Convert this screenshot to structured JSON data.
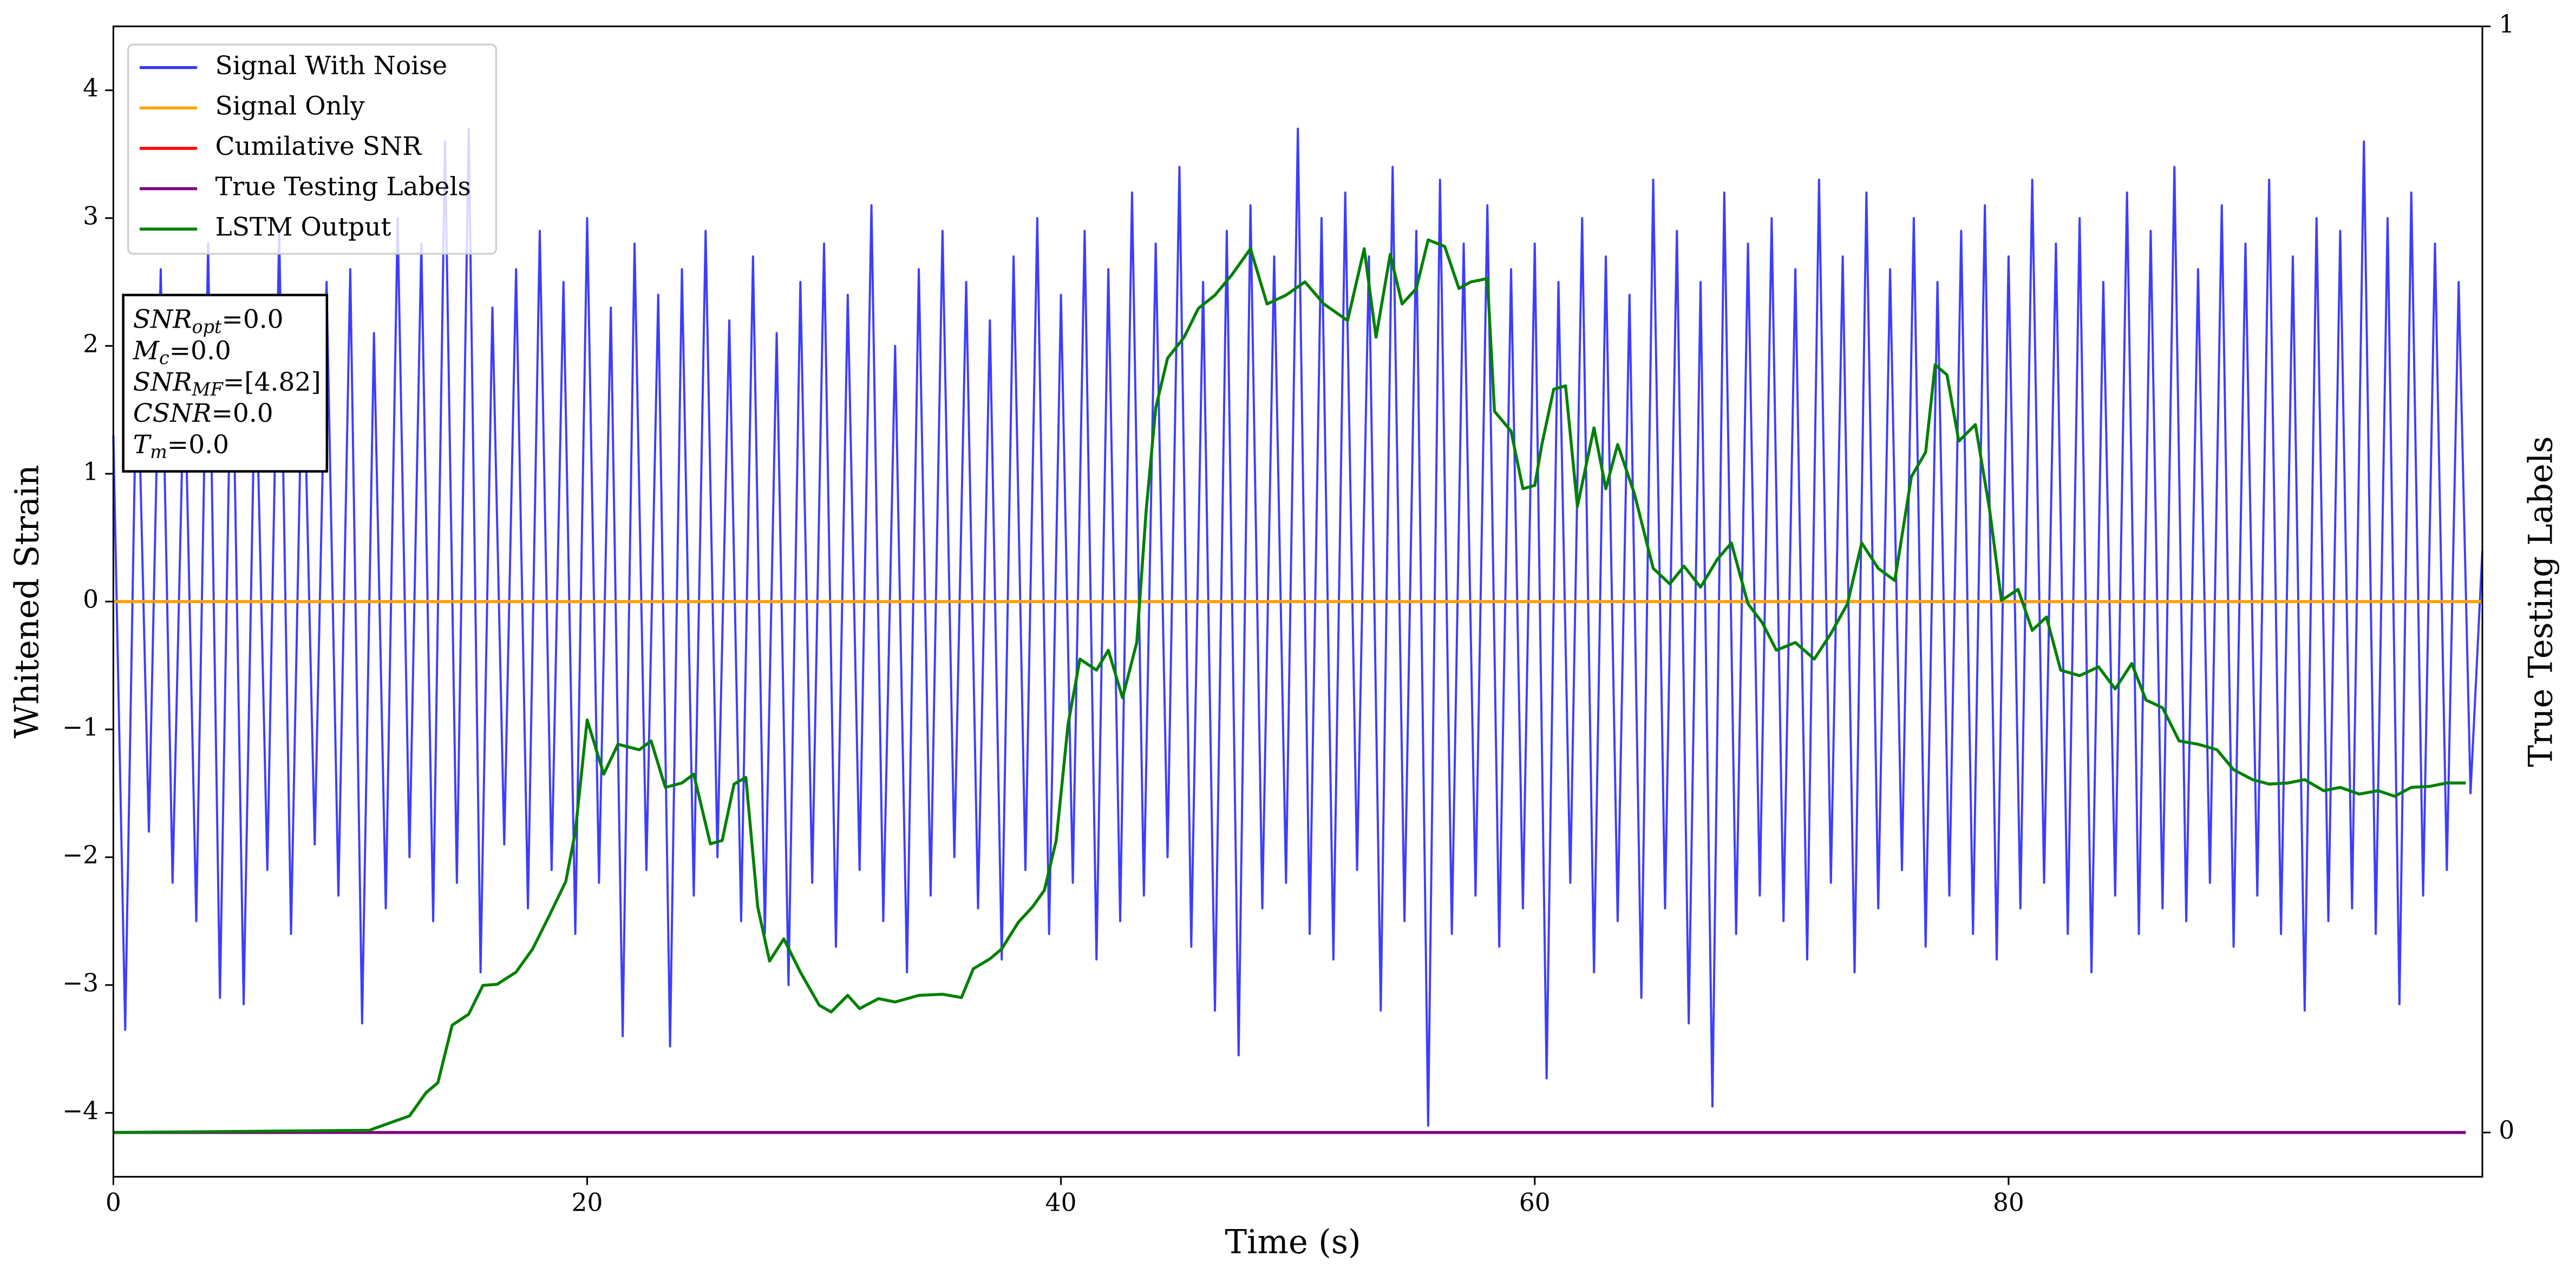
{
  "chart_data": {
    "type": "line",
    "xlabel": "Time (s)",
    "ylabel": "Whitened Strain",
    "y2label": "True Testing Labels",
    "xlim": [
      0,
      100
    ],
    "xticks": [
      0,
      20,
      40,
      60,
      80
    ],
    "ylim": [
      -4.5,
      4.5
    ],
    "yticks": [
      {
        "value": -4,
        "label": "−4"
      },
      {
        "value": -3,
        "label": "−3"
      },
      {
        "value": -2,
        "label": "−2"
      },
      {
        "value": -1,
        "label": "−1"
      },
      0,
      1,
      2,
      3,
      4
    ],
    "y2lim": [
      -0.04,
      1.0
    ],
    "y2ticks": [
      0,
      1
    ],
    "legend": "upper left",
    "annotations": [
      {
        "text": "SNR",
        "sub": "opt",
        "rest": "=0.0"
      },
      {
        "text": "M",
        "sub": "c",
        "rest": "=0.0"
      },
      {
        "text": "SNR",
        "sub": "MF",
        "rest": "=[4.82]"
      },
      {
        "text": "CSNR",
        "rest": "=0.0"
      },
      {
        "text": "T",
        "sub": "m",
        "rest": "=0.0"
      }
    ],
    "series": [
      {
        "name": "Signal With Noise",
        "color": "#3333ff",
        "axis": "y",
        "x": [
          0,
          0.5,
          1,
          1.5,
          2,
          2.5,
          3,
          3.5,
          4,
          4.5,
          5,
          5.5,
          6,
          6.5,
          7,
          7.5,
          8,
          8.5,
          9,
          9.5,
          10,
          10.5,
          11,
          11.5,
          12,
          12.5,
          13,
          13.5,
          14,
          14.5,
          15,
          15.5,
          16,
          16.5,
          17,
          17.5,
          18,
          18.5,
          19,
          19.5,
          20,
          20.5,
          21,
          21.5,
          22,
          22.5,
          23,
          23.5,
          24,
          24.5,
          25,
          25.5,
          26,
          26.5,
          27,
          27.5,
          28,
          28.5,
          29,
          29.5,
          30,
          30.5,
          31,
          31.5,
          32,
          32.5,
          33,
          33.5,
          34,
          34.5,
          35,
          35.5,
          36,
          36.5,
          37,
          37.5,
          38,
          38.5,
          39,
          39.5,
          40,
          40.5,
          41,
          41.5,
          42,
          42.5,
          43,
          43.5,
          44,
          44.5,
          45,
          45.5,
          46,
          46.5,
          47,
          47.5,
          48,
          48.5,
          49,
          49.5,
          50,
          50.5,
          51,
          51.5,
          52,
          52.5,
          53,
          53.5,
          54,
          54.5,
          55,
          55.5,
          56,
          56.5,
          57,
          57.5,
          58,
          58.5,
          59,
          59.5,
          60,
          60.5,
          61,
          61.5,
          62,
          62.5,
          63,
          63.5,
          64,
          64.5,
          65,
          65.5,
          66,
          66.5,
          67,
          67.5,
          68,
          68.5,
          69,
          69.5,
          70,
          70.5,
          71,
          71.5,
          72,
          72.5,
          73,
          73.5,
          74,
          74.5,
          75,
          75.5,
          76,
          76.5,
          77,
          77.5,
          78,
          78.5,
          79,
          79.5,
          80,
          80.5,
          81,
          81.5,
          82,
          82.5,
          83,
          83.5,
          84,
          84.5,
          85,
          85.5,
          86,
          86.5,
          87,
          87.5,
          88,
          88.5,
          89,
          89.5,
          90,
          90.5,
          91,
          91.5,
          92,
          92.5,
          93,
          93.5,
          94,
          94.5,
          95,
          95.5,
          96,
          96.5,
          97,
          97.5,
          98,
          98.5,
          99,
          99.5,
          100
        ],
        "values": [
          1.3,
          -3.35,
          2.1,
          -1.8,
          2.6,
          -2.2,
          1.9,
          -2.5,
          2.8,
          -3.1,
          2.4,
          -3.15,
          2.0,
          -2.1,
          2.9,
          -2.6,
          2.2,
          -1.9,
          2.5,
          -2.3,
          2.6,
          -3.3,
          2.1,
          -2.4,
          3.0,
          -2.0,
          2.8,
          -2.5,
          3.6,
          -2.2,
          3.7,
          -2.9,
          2.3,
          -1.9,
          2.6,
          -2.4,
          2.9,
          -2.1,
          2.5,
          -2.6,
          3.0,
          -2.2,
          2.3,
          -3.4,
          2.8,
          -2.1,
          2.4,
          -3.48,
          2.6,
          -2.3,
          2.9,
          -2.0,
          2.2,
          -2.5,
          2.7,
          -2.6,
          2.1,
          -3.0,
          2.5,
          -2.2,
          2.8,
          -2.7,
          2.4,
          -2.1,
          3.1,
          -2.5,
          2.0,
          -2.9,
          2.6,
          -2.3,
          2.9,
          -2.0,
          2.5,
          -2.4,
          2.2,
          -2.8,
          2.7,
          -2.1,
          3.0,
          -2.6,
          2.4,
          -2.2,
          2.9,
          -2.8,
          2.6,
          -2.5,
          3.2,
          -2.3,
          2.8,
          -2.0,
          3.4,
          -2.7,
          2.5,
          -3.2,
          2.9,
          -3.55,
          3.1,
          -2.4,
          2.7,
          -2.2,
          3.7,
          -2.6,
          3.0,
          -2.8,
          3.2,
          -2.1,
          2.7,
          -3.2,
          3.4,
          -2.5,
          2.9,
          -4.1,
          3.3,
          -2.6,
          2.8,
          -2.3,
          3.1,
          -2.7,
          2.6,
          -2.4,
          2.8,
          -3.73,
          2.5,
          -2.2,
          3.0,
          -2.9,
          2.7,
          -2.5,
          2.4,
          -3.1,
          3.3,
          -2.4,
          2.9,
          -3.3,
          2.5,
          -3.95,
          3.2,
          -2.6,
          2.8,
          -2.3,
          3.0,
          -2.5,
          2.6,
          -2.8,
          3.3,
          -2.2,
          2.7,
          -2.9,
          3.2,
          -2.4,
          2.6,
          -2.1,
          3.0,
          -2.7,
          2.5,
          -2.3,
          2.9,
          -2.6,
          3.1,
          -2.8,
          2.7,
          -2.4,
          3.3,
          -2.2,
          2.8,
          -2.6,
          3.0,
          -2.9,
          2.5,
          -2.3,
          3.2,
          -2.6,
          2.9,
          -2.4,
          3.4,
          -2.5,
          2.6,
          -2.2,
          3.1,
          -2.7,
          2.8,
          -2.3,
          3.3,
          -2.6,
          2.7,
          -3.2,
          3.0,
          -2.5,
          2.9,
          -2.4,
          3.6,
          -2.6,
          3.0,
          -3.15,
          3.2,
          -2.3,
          2.8,
          -2.1,
          2.5,
          -1.5,
          0.4
        ]
      },
      {
        "name": "Signal Only",
        "color": "orange",
        "axis": "y",
        "x": [
          0,
          100
        ],
        "values": [
          0,
          0
        ]
      },
      {
        "name": "Cumilative SNR",
        "color": "red",
        "axis": "y",
        "x": [
          0,
          100
        ],
        "values": [
          0,
          0
        ]
      },
      {
        "name": "True Testing Labels",
        "color": "purple",
        "axis": "y2",
        "x": [
          0,
          99.3
        ],
        "values": [
          0,
          0
        ]
      },
      {
        "name": "LSTM Output",
        "color": "green",
        "axis": "y2",
        "x": [
          0,
          10.8,
          12.5,
          13.2,
          13.7,
          14.3,
          15.0,
          15.6,
          16.2,
          17.0,
          17.7,
          18.4,
          19.1,
          19.5,
          20,
          20.7,
          21.3,
          22.2,
          22.7,
          23.3,
          24.0,
          24.5,
          25.2,
          25.7,
          26.2,
          26.7,
          27.2,
          27.7,
          28.3,
          29.0,
          29.8,
          30.3,
          31.0,
          31.5,
          32.3,
          33.0,
          34.0,
          35.0,
          35.8,
          36.3,
          37.0,
          37.5,
          38.2,
          38.8,
          39.3,
          39.8,
          40.3,
          40.8,
          41.5,
          42.0,
          42.6,
          43.2,
          43.6,
          44.0,
          44.5,
          45.2,
          45.8,
          46.5,
          47.2,
          48.0,
          48.7,
          49.5,
          50.3,
          51.1,
          52.1,
          52.8,
          53.3,
          53.9,
          54.4,
          55.0,
          55.5,
          56.2,
          56.8,
          57.3,
          58.0,
          58.3,
          59.0,
          59.5,
          60.0,
          60.3,
          60.8,
          61.3,
          61.8,
          62.5,
          63.0,
          63.5,
          64.2,
          65.0,
          65.7,
          66.3,
          67.0,
          67.7,
          68.3,
          69.0,
          69.6,
          70.2,
          71.0,
          71.8,
          72.5,
          73.2,
          73.8,
          74.5,
          75.2,
          75.9,
          76.5,
          76.9,
          77.4,
          77.9,
          78.6,
          79.2,
          79.7,
          80.4,
          81.0,
          81.6,
          82.2,
          83.0,
          83.8,
          84.5,
          85.2,
          85.8,
          86.5,
          87.2,
          88.0,
          88.8,
          89.5,
          90.3,
          91.0,
          91.8,
          92.5,
          93.3,
          94.0,
          94.8,
          95.6,
          96.3,
          97.0,
          97.8,
          98.5,
          99.3
        ],
        "values": [
          0,
          0.002,
          0.015,
          0.036,
          0.045,
          0.097,
          0.107,
          0.133,
          0.134,
          0.145,
          0.166,
          0.196,
          0.227,
          0.272,
          0.373,
          0.324,
          0.351,
          0.346,
          0.354,
          0.312,
          0.316,
          0.324,
          0.261,
          0.264,
          0.315,
          0.321,
          0.204,
          0.155,
          0.175,
          0.145,
          0.115,
          0.109,
          0.124,
          0.112,
          0.121,
          0.118,
          0.124,
          0.125,
          0.122,
          0.148,
          0.157,
          0.166,
          0.19,
          0.204,
          0.219,
          0.264,
          0.369,
          0.428,
          0.418,
          0.436,
          0.393,
          0.443,
          0.563,
          0.655,
          0.7,
          0.719,
          0.745,
          0.757,
          0.775,
          0.799,
          0.749,
          0.757,
          0.769,
          0.749,
          0.734,
          0.799,
          0.719,
          0.794,
          0.749,
          0.763,
          0.807,
          0.801,
          0.763,
          0.769,
          0.772,
          0.652,
          0.634,
          0.582,
          0.585,
          0.622,
          0.672,
          0.675,
          0.566,
          0.637,
          0.582,
          0.622,
          0.578,
          0.51,
          0.496,
          0.512,
          0.493,
          0.518,
          0.533,
          0.478,
          0.461,
          0.436,
          0.443,
          0.428,
          0.451,
          0.478,
          0.533,
          0.51,
          0.499,
          0.593,
          0.615,
          0.694,
          0.685,
          0.625,
          0.64,
          0.563,
          0.481,
          0.491,
          0.454,
          0.466,
          0.418,
          0.413,
          0.421,
          0.401,
          0.424,
          0.391,
          0.384,
          0.354,
          0.351,
          0.346,
          0.328,
          0.319,
          0.315,
          0.316,
          0.319,
          0.309,
          0.312,
          0.306,
          0.309,
          0.304,
          0.312,
          0.313,
          0.316,
          0.316
        ]
      }
    ]
  }
}
